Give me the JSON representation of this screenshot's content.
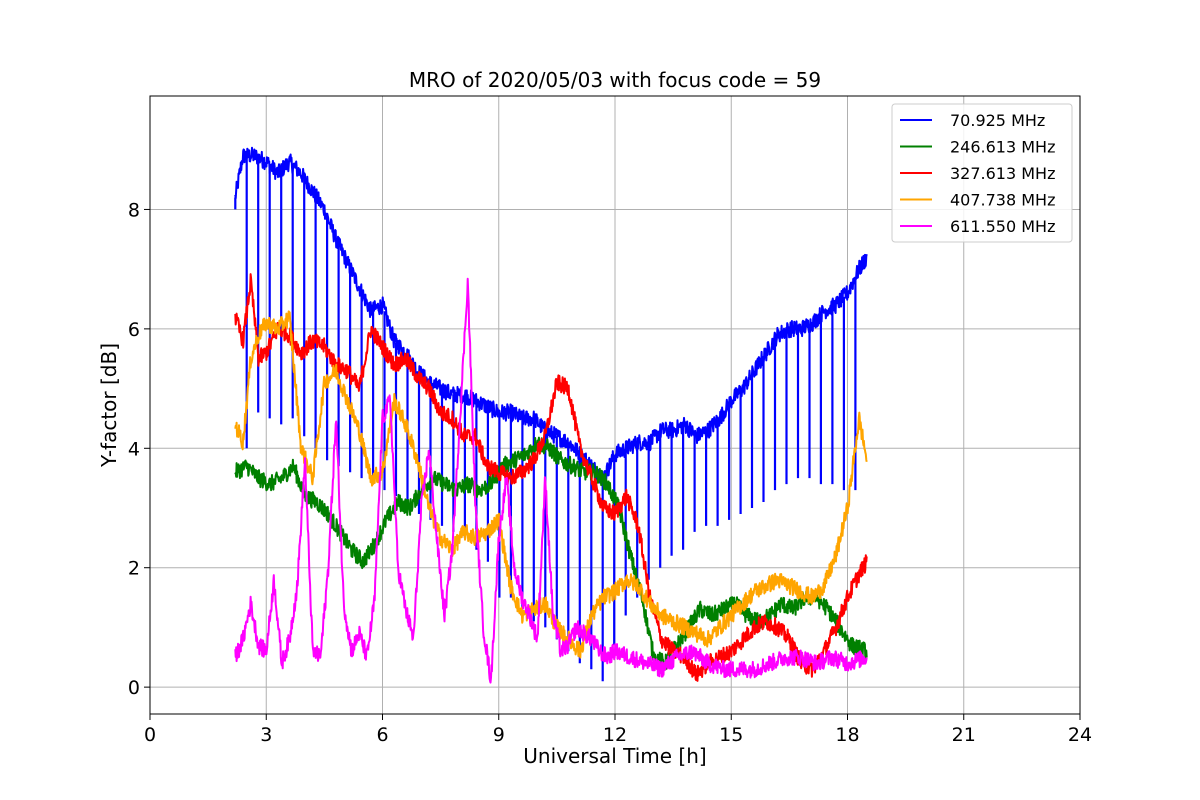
{
  "chart_data": {
    "type": "line",
    "title": "MRO of 2020/05/03 with focus code = 59",
    "xlabel": "Universal Time [h]",
    "ylabel": "Y-factor [dB]",
    "xlim": [
      0,
      24
    ],
    "ylim": [
      -0.45,
      9.9
    ],
    "xticks": [
      0,
      3,
      6,
      9,
      12,
      15,
      18,
      21,
      24
    ],
    "yticks": [
      0,
      2,
      4,
      6,
      8
    ],
    "grid": true,
    "legend_position": "top-right",
    "series": [
      {
        "name": "  70.925 MHz",
        "color": "#0000ff",
        "dips": true,
        "x": [
          2.2,
          2.4,
          2.7,
          3.0,
          3.3,
          3.6,
          3.9,
          4.2,
          4.5,
          4.8,
          5.1,
          5.4,
          5.7,
          6.0,
          6.3,
          6.6,
          6.9,
          7.2,
          7.5,
          7.8,
          8.1,
          8.4,
          8.7,
          9.0,
          9.3,
          9.6,
          9.9,
          10.2,
          10.5,
          10.8,
          11.1,
          11.4,
          11.7,
          12.0,
          12.3,
          12.6,
          12.9,
          13.2,
          13.5,
          13.8,
          14.1,
          14.4,
          14.7,
          15.0,
          15.3,
          15.6,
          15.9,
          16.2,
          16.5,
          16.8,
          17.1,
          17.4,
          17.7,
          18.0,
          18.3,
          18.5
        ],
        "y": [
          8.2,
          8.9,
          8.9,
          8.8,
          8.6,
          8.8,
          8.6,
          8.3,
          8.0,
          7.5,
          7.1,
          6.7,
          6.3,
          6.4,
          5.8,
          5.6,
          5.3,
          5.1,
          5.0,
          4.9,
          4.9,
          4.8,
          4.7,
          4.6,
          4.6,
          4.5,
          4.5,
          4.3,
          4.2,
          4.1,
          3.9,
          3.7,
          3.5,
          3.9,
          4.0,
          4.1,
          4.1,
          4.3,
          4.3,
          4.4,
          4.2,
          4.3,
          4.5,
          4.8,
          5.0,
          5.3,
          5.6,
          5.9,
          6.0,
          6.0,
          6.1,
          6.3,
          6.4,
          6.6,
          7.0,
          7.2
        ],
        "dip_y": [
          8.0,
          4.0,
          4.6,
          4.5,
          4.4,
          4.5,
          4.2,
          4.0,
          3.8,
          3.7,
          3.6,
          3.5,
          3.4,
          3.3,
          3.2,
          3.1,
          2.9,
          2.8,
          2.7,
          2.6,
          2.5,
          2.3,
          2.1,
          1.5,
          1.5,
          1.3,
          1.1,
          1.0,
          0.8,
          0.6,
          0.4,
          0.3,
          0.1,
          0.7,
          1.2,
          1.5,
          1.8,
          2.0,
          2.2,
          2.3,
          2.6,
          2.7,
          2.7,
          2.8,
          2.9,
          3.0,
          3.1,
          3.3,
          3.4,
          3.5,
          3.5,
          3.4,
          3.4,
          3.3,
          3.3,
          7.2
        ]
      },
      {
        "name": "246.613 MHz",
        "color": "#008000",
        "x": [
          2.2,
          2.5,
          2.8,
          3.1,
          3.4,
          3.7,
          4.0,
          4.3,
          4.6,
          4.9,
          5.2,
          5.5,
          5.8,
          6.1,
          6.4,
          6.7,
          7.0,
          7.3,
          7.6,
          7.9,
          8.2,
          8.5,
          8.8,
          9.1,
          9.4,
          9.7,
          10.0,
          10.3,
          10.6,
          10.9,
          11.2,
          11.5,
          11.8,
          12.1,
          12.4,
          12.7,
          13.0,
          13.3,
          13.6,
          13.9,
          14.2,
          14.5,
          14.8,
          15.1,
          15.4,
          15.7,
          16.0,
          16.3,
          16.6,
          16.9,
          17.2,
          17.5,
          17.8,
          18.1,
          18.5
        ],
        "y": [
          3.6,
          3.7,
          3.5,
          3.4,
          3.5,
          3.7,
          3.2,
          3.1,
          2.9,
          2.6,
          2.3,
          2.1,
          2.4,
          2.8,
          3.1,
          3.0,
          3.3,
          3.5,
          3.4,
          3.3,
          3.4,
          3.3,
          3.4,
          3.7,
          3.8,
          3.9,
          4.1,
          4.0,
          3.8,
          3.7,
          3.6,
          3.6,
          3.4,
          3.0,
          2.2,
          1.5,
          0.5,
          0.4,
          0.7,
          1.0,
          1.3,
          1.2,
          1.3,
          1.4,
          1.2,
          1.1,
          1.2,
          1.4,
          1.3,
          1.5,
          1.5,
          1.3,
          1.0,
          0.7,
          0.6
        ]
      },
      {
        "name": "327.613 MHz",
        "color": "#ff0000",
        "x": [
          2.2,
          2.4,
          2.6,
          2.8,
          3.0,
          3.3,
          3.6,
          3.9,
          4.2,
          4.5,
          4.8,
          5.1,
          5.4,
          5.7,
          6.0,
          6.3,
          6.6,
          6.9,
          7.2,
          7.5,
          7.8,
          8.1,
          8.4,
          8.7,
          9.0,
          9.3,
          9.6,
          9.9,
          10.2,
          10.5,
          10.8,
          11.1,
          11.4,
          11.7,
          12.0,
          12.3,
          12.6,
          12.9,
          13.2,
          13.5,
          13.8,
          14.1,
          14.4,
          14.7,
          15.0,
          15.3,
          15.6,
          15.9,
          16.2,
          16.5,
          16.8,
          17.1,
          17.4,
          17.7,
          18.0,
          18.3,
          18.5
        ],
        "y": [
          6.2,
          5.8,
          6.8,
          5.5,
          5.6,
          6.0,
          5.9,
          5.6,
          5.8,
          5.7,
          5.4,
          5.3,
          5.0,
          6.0,
          5.7,
          5.4,
          5.5,
          5.2,
          5.0,
          4.6,
          4.5,
          4.2,
          4.2,
          3.7,
          3.6,
          3.5,
          3.6,
          3.8,
          4.2,
          5.1,
          5.0,
          4.0,
          3.5,
          3.0,
          2.9,
          3.2,
          2.7,
          1.5,
          0.8,
          0.6,
          0.5,
          0.2,
          0.4,
          0.5,
          0.6,
          0.8,
          1.0,
          1.1,
          1.0,
          0.8,
          0.4,
          0.3,
          0.6,
          1.0,
          1.5,
          1.9,
          2.1
        ]
      },
      {
        "name": "407.738 MHz",
        "color": "#ffa500",
        "x": [
          2.2,
          2.4,
          2.6,
          2.8,
          3.0,
          3.3,
          3.6,
          3.9,
          4.2,
          4.5,
          4.8,
          5.1,
          5.4,
          5.7,
          6.0,
          6.3,
          6.6,
          6.9,
          7.2,
          7.5,
          7.8,
          8.1,
          8.4,
          8.7,
          9.0,
          9.3,
          9.6,
          9.9,
          10.2,
          10.5,
          10.8,
          11.1,
          11.4,
          11.7,
          12.0,
          12.3,
          12.6,
          12.9,
          13.2,
          13.5,
          13.8,
          14.1,
          14.4,
          14.7,
          15.0,
          15.3,
          15.6,
          15.9,
          16.2,
          16.5,
          16.8,
          17.1,
          17.4,
          17.7,
          18.0,
          18.3,
          18.5
        ],
        "y": [
          4.4,
          4.1,
          5.5,
          5.9,
          6.1,
          6.0,
          6.2,
          4.0,
          3.5,
          5.1,
          5.3,
          4.8,
          4.3,
          3.5,
          3.6,
          4.8,
          4.4,
          3.8,
          3.0,
          2.5,
          2.3,
          2.6,
          2.5,
          2.6,
          2.8,
          1.7,
          1.2,
          1.3,
          1.4,
          1.0,
          0.8,
          0.6,
          1.2,
          1.5,
          1.6,
          1.8,
          1.7,
          1.4,
          1.2,
          1.1,
          1.0,
          0.9,
          0.8,
          1.0,
          1.2,
          1.4,
          1.6,
          1.7,
          1.8,
          1.7,
          1.6,
          1.5,
          1.7,
          2.2,
          3.0,
          4.5,
          3.8
        ]
      },
      {
        "name": "611.550 MHz",
        "color": "#ff00ff",
        "x": [
          2.2,
          2.4,
          2.6,
          2.8,
          3.0,
          3.2,
          3.4,
          3.6,
          3.8,
          4.0,
          4.2,
          4.4,
          4.6,
          4.8,
          5.0,
          5.2,
          5.4,
          5.6,
          5.8,
          6.0,
          6.2,
          6.4,
          6.6,
          6.8,
          7.0,
          7.2,
          7.4,
          7.6,
          7.8,
          8.0,
          8.2,
          8.4,
          8.6,
          8.8,
          9.0,
          9.2,
          9.4,
          9.6,
          9.8,
          10.0,
          10.2,
          10.4,
          10.6,
          10.8,
          11.0,
          11.2,
          11.4,
          11.6,
          11.8,
          12.0,
          12.4,
          12.8,
          13.2,
          13.6,
          14.0,
          14.4,
          14.8,
          15.2,
          15.6,
          16.0,
          16.4,
          16.8,
          17.2,
          17.6,
          18.0,
          18.5
        ],
        "y": [
          0.5,
          0.8,
          1.4,
          0.7,
          0.6,
          1.8,
          0.4,
          0.8,
          1.7,
          3.8,
          0.6,
          0.5,
          2.0,
          4.5,
          1.4,
          0.6,
          0.9,
          0.5,
          1.5,
          4.5,
          4.8,
          2.0,
          1.3,
          0.8,
          3.0,
          4.0,
          2.5,
          1.2,
          2.3,
          4.5,
          6.8,
          3.0,
          1.0,
          0.1,
          2.5,
          3.5,
          2.0,
          1.5,
          1.2,
          0.8,
          3.5,
          1.2,
          0.6,
          0.7,
          1.0,
          0.9,
          0.8,
          0.6,
          0.5,
          0.6,
          0.5,
          0.4,
          0.3,
          0.5,
          0.6,
          0.4,
          0.3,
          0.3,
          0.3,
          0.4,
          0.5,
          0.5,
          0.4,
          0.5,
          0.4,
          0.5
        ]
      }
    ]
  }
}
